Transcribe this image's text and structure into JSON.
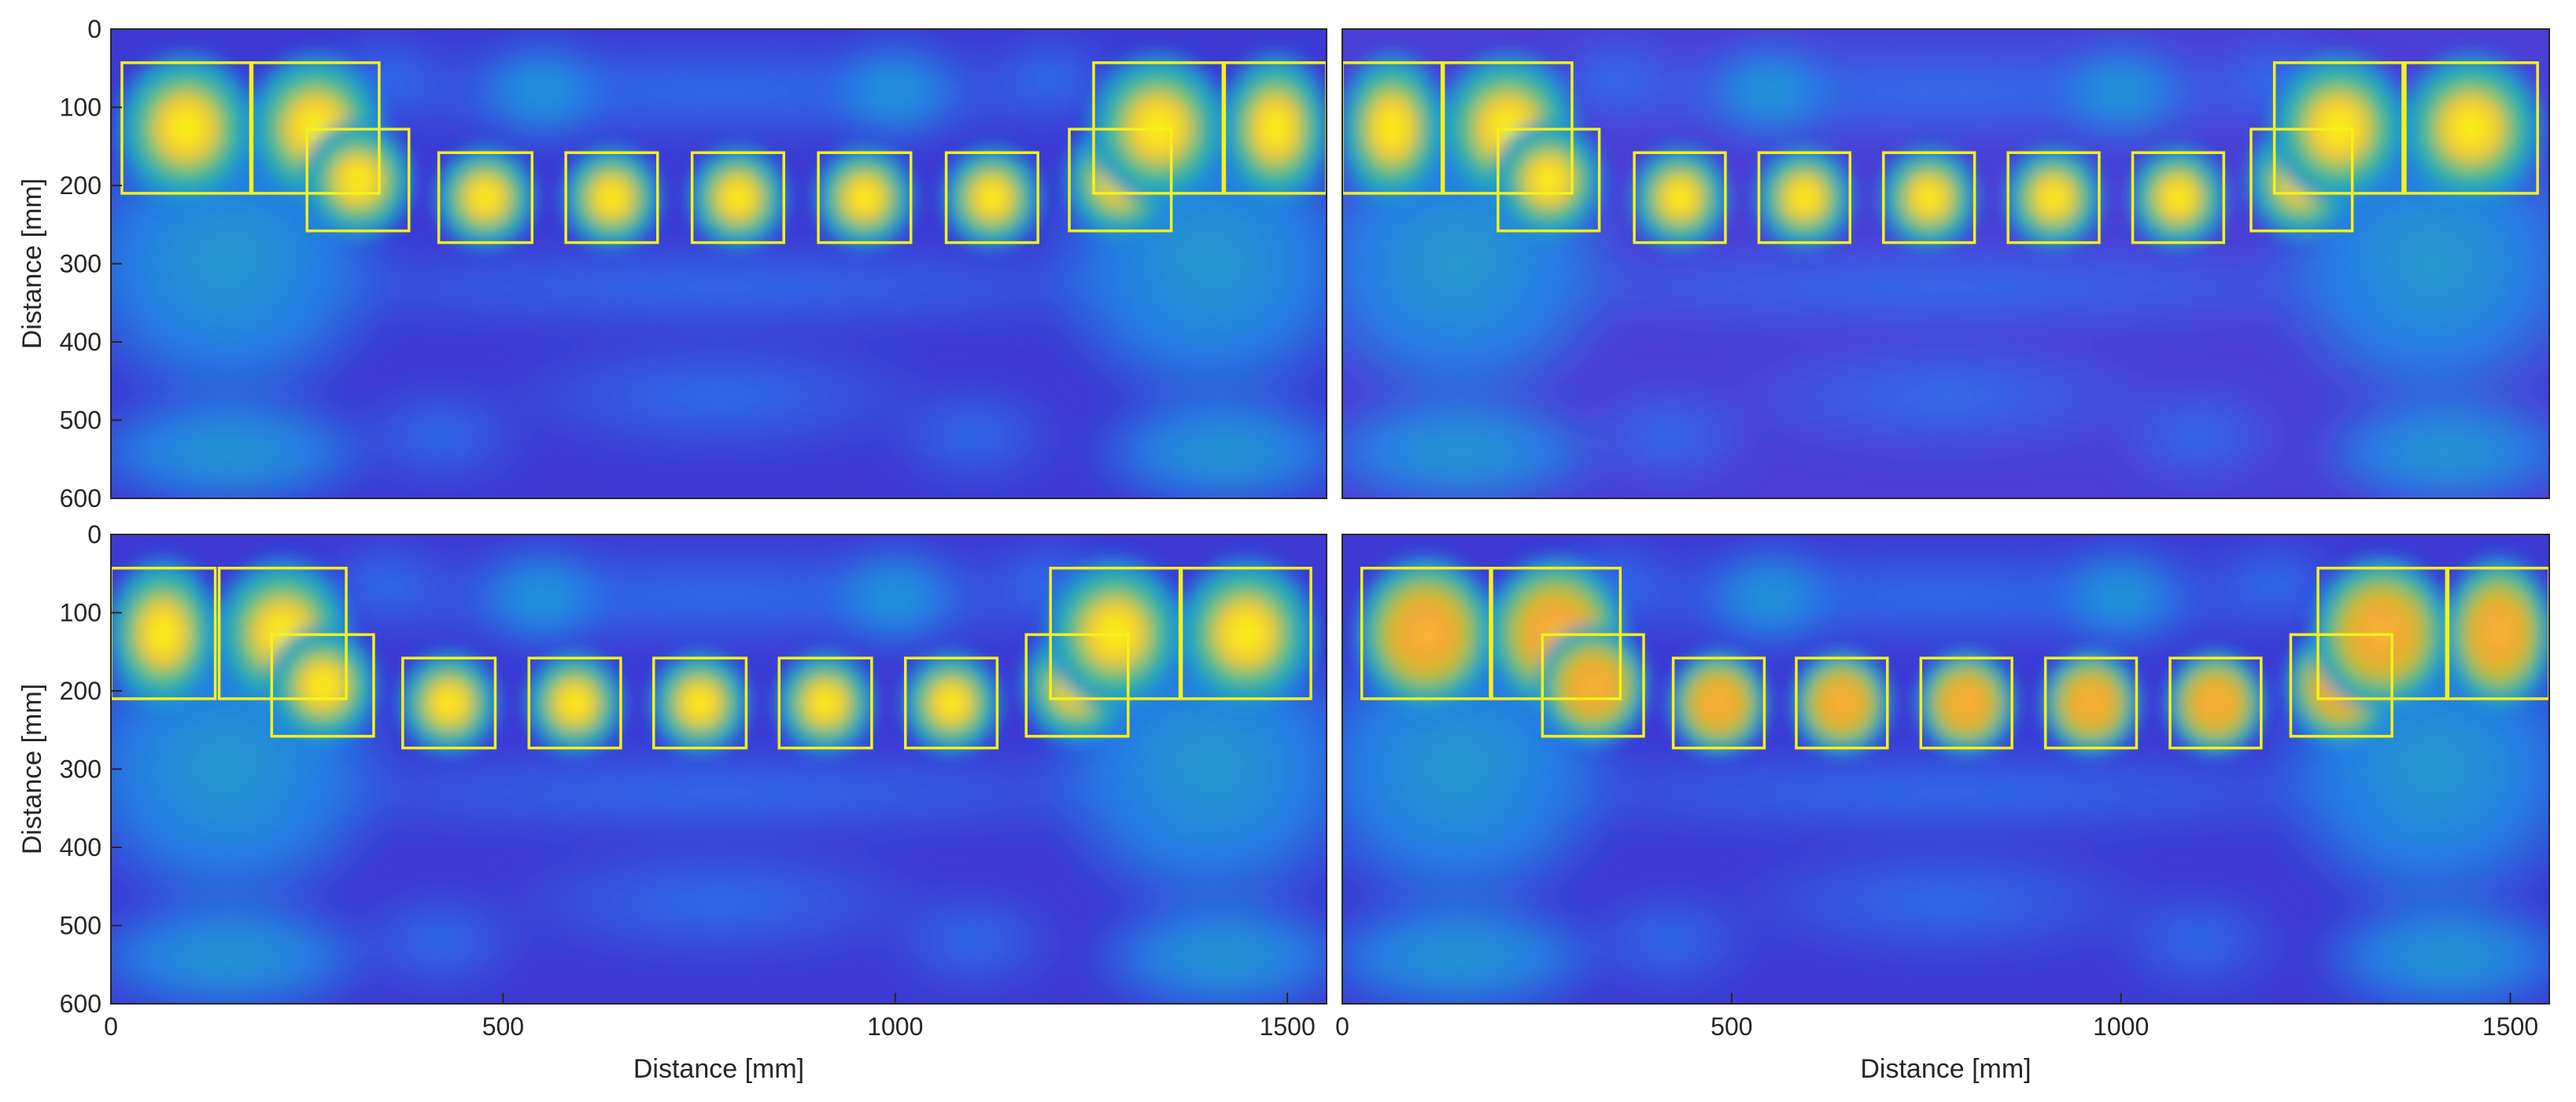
{
  "chart_data": [
    {
      "type": "heatmap",
      "panel": "top-left",
      "xlabel": "",
      "ylabel": "Distance [mm]",
      "xlim": [
        0,
        1550
      ],
      "ylim": [
        600,
        0
      ],
      "xticks": [],
      "yticks": [
        0,
        100,
        200,
        300,
        400,
        500,
        600
      ],
      "colormap": "parula",
      "boxes": [
        [
          14,
          43,
          178,
          210
        ],
        [
          180,
          43,
          342,
          210
        ],
        [
          250,
          128,
          380,
          258
        ],
        [
          418,
          158,
          537,
          273
        ],
        [
          580,
          158,
          697,
          273
        ],
        [
          741,
          158,
          858,
          273
        ],
        [
          902,
          158,
          1020,
          273
        ],
        [
          1065,
          158,
          1182,
          273
        ],
        [
          1222,
          128,
          1352,
          258
        ],
        [
          1253,
          43,
          1418,
          210
        ],
        [
          1420,
          43,
          1550,
          210
        ]
      ]
    },
    {
      "type": "heatmap",
      "panel": "top-right",
      "xlabel": "",
      "ylabel": "",
      "xlim": [
        0,
        1550
      ],
      "ylim": [
        600,
        0
      ],
      "xticks": [],
      "yticks": [],
      "colormap": "parula",
      "boxes": [
        [
          0,
          43,
          128,
          210
        ],
        [
          130,
          43,
          295,
          210
        ],
        [
          200,
          128,
          330,
          258
        ],
        [
          375,
          158,
          492,
          273
        ],
        [
          535,
          158,
          652,
          273
        ],
        [
          695,
          158,
          812,
          273
        ],
        [
          855,
          158,
          972,
          273
        ],
        [
          1015,
          158,
          1132,
          273
        ],
        [
          1167,
          128,
          1297,
          258
        ],
        [
          1197,
          43,
          1362,
          210
        ],
        [
          1365,
          43,
          1535,
          210
        ]
      ]
    },
    {
      "type": "heatmap",
      "panel": "bottom-left",
      "xlabel": "Distance [mm]",
      "ylabel": "Distance [mm]",
      "xlim": [
        0,
        1550
      ],
      "ylim": [
        600,
        0
      ],
      "xticks": [
        0,
        500,
        1000,
        1500
      ],
      "yticks": [
        0,
        100,
        200,
        300,
        400,
        500,
        600
      ],
      "colormap": "parula",
      "boxes": [
        [
          0,
          43,
          133,
          210
        ],
        [
          138,
          43,
          300,
          210
        ],
        [
          205,
          128,
          335,
          258
        ],
        [
          372,
          158,
          490,
          273
        ],
        [
          533,
          158,
          650,
          273
        ],
        [
          692,
          158,
          810,
          273
        ],
        [
          852,
          158,
          970,
          273
        ],
        [
          1013,
          158,
          1130,
          273
        ],
        [
          1167,
          128,
          1297,
          258
        ],
        [
          1198,
          43,
          1363,
          210
        ],
        [
          1365,
          43,
          1530,
          210
        ]
      ]
    },
    {
      "type": "heatmap",
      "panel": "bottom-right",
      "xlabel": "Distance [mm]",
      "ylabel": "",
      "xlim": [
        0,
        1550
      ],
      "ylim": [
        600,
        0
      ],
      "xticks": [
        0,
        500,
        1000,
        1500
      ],
      "yticks": [],
      "colormap": "parula",
      "boxes": [
        [
          25,
          43,
          190,
          210
        ],
        [
          192,
          43,
          357,
          210
        ],
        [
          257,
          128,
          387,
          258
        ],
        [
          425,
          158,
          542,
          273
        ],
        [
          583,
          158,
          700,
          273
        ],
        [
          743,
          158,
          860,
          273
        ],
        [
          903,
          158,
          1020,
          273
        ],
        [
          1063,
          158,
          1180,
          273
        ],
        [
          1218,
          128,
          1348,
          258
        ],
        [
          1253,
          43,
          1418,
          210
        ],
        [
          1420,
          43,
          1550,
          210
        ]
      ]
    }
  ]
}
